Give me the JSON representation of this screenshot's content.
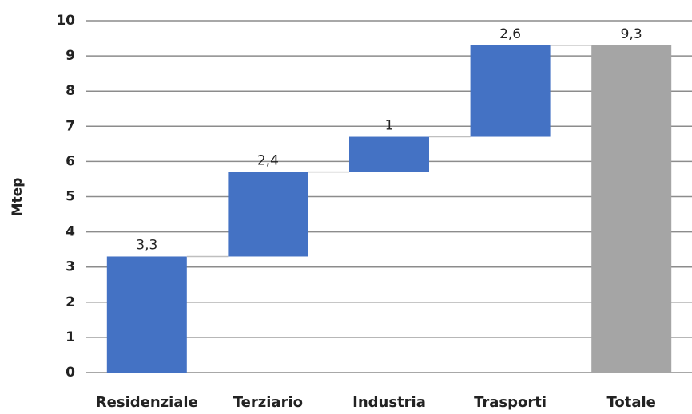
{
  "chart_data": {
    "type": "waterfall",
    "y_label": "Mtep",
    "categories": [
      "Residenziale",
      "Terziario",
      "Industria",
      "Trasporti",
      "Totale"
    ],
    "values": [
      3.3,
      2.4,
      1,
      2.6,
      9.3
    ],
    "value_labels": [
      "3,3",
      "2,4",
      "1",
      "2,6",
      "9,3"
    ],
    "is_total": [
      false,
      false,
      false,
      false,
      true
    ],
    "color": "#4472c4",
    "total_color": "#a5a5a5",
    "ylim": [
      0,
      10
    ],
    "yticks": [
      0,
      1,
      2,
      3,
      4,
      5,
      6,
      7,
      8,
      9,
      10
    ],
    "grid": true
  }
}
